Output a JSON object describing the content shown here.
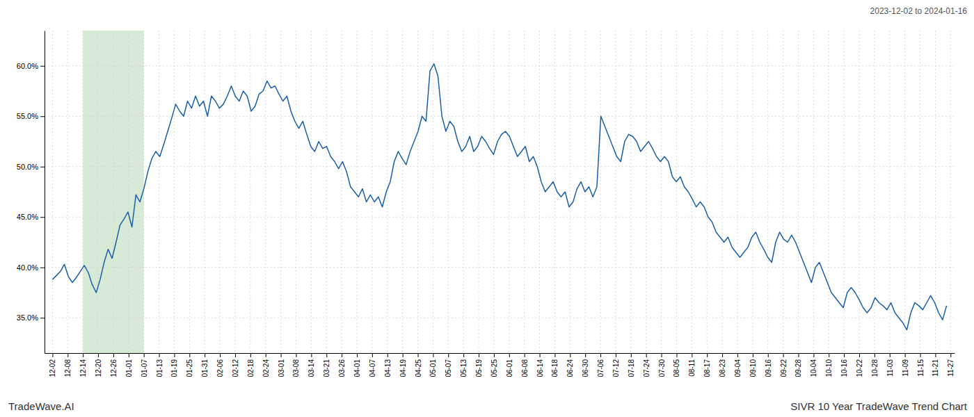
{
  "chart_data": {
    "type": "line",
    "title": "SIVR 10 Year TradeWave Trend Chart",
    "subtitle": "2023-12-02 to 2024-01-16",
    "annotations": [
      "TradeWave.AI"
    ],
    "color": "#1a5fa8",
    "grid": true,
    "highlight": {
      "x": [
        7.6610169492,
        22.9830508475
      ],
      "color": "#d6ead6"
    },
    "xlim": [
      -2,
      227
    ],
    "xticks": [
      {
        "value": 0,
        "label": "12-02"
      },
      {
        "value": 3.8305084746,
        "label": "12-08"
      },
      {
        "value": 7.6610169492,
        "label": "12-14"
      },
      {
        "value": 11.4915254237,
        "label": "12-20"
      },
      {
        "value": 15.3220338983,
        "label": "12-26"
      },
      {
        "value": 19.1525423729,
        "label": "01-01"
      },
      {
        "value": 22.9830508475,
        "label": "01-07"
      },
      {
        "value": 26.813559322,
        "label": "01-13"
      },
      {
        "value": 30.6440677966,
        "label": "01-19"
      },
      {
        "value": 34.4745762712,
        "label": "01-25"
      },
      {
        "value": 38.3050847458,
        "label": "01-31"
      },
      {
        "value": 42.1355932203,
        "label": "02-06"
      },
      {
        "value": 45.9661016949,
        "label": "02-12"
      },
      {
        "value": 49.7966101695,
        "label": "02-18"
      },
      {
        "value": 53.6271186441,
        "label": "02-24"
      },
      {
        "value": 57.4576271186,
        "label": "03-01"
      },
      {
        "value": 61.2881355932,
        "label": "03-08"
      },
      {
        "value": 65.1186440678,
        "label": "03-14"
      },
      {
        "value": 68.9491525424,
        "label": "03-21"
      },
      {
        "value": 72.7796610169,
        "label": "03-26"
      },
      {
        "value": 76.6101694915,
        "label": "04-01"
      },
      {
        "value": 80.4406779661,
        "label": "04-07"
      },
      {
        "value": 84.2711864407,
        "label": "04-13"
      },
      {
        "value": 88.1016949153,
        "label": "04-19"
      },
      {
        "value": 91.9322033898,
        "label": "04-25"
      },
      {
        "value": 95.7627118644,
        "label": "05-01"
      },
      {
        "value": 99.593220339,
        "label": "05-07"
      },
      {
        "value": 103.4237288136,
        "label": "05-13"
      },
      {
        "value": 107.2542372881,
        "label": "05-19"
      },
      {
        "value": 111.0847457627,
        "label": "05-25"
      },
      {
        "value": 114.9152542373,
        "label": "06-01"
      },
      {
        "value": 118.7457627119,
        "label": "06-08"
      },
      {
        "value": 122.5762711864,
        "label": "06-14"
      },
      {
        "value": 126.406779661,
        "label": "06-18"
      },
      {
        "value": 130.2372881356,
        "label": "06-24"
      },
      {
        "value": 134.0677966102,
        "label": "06-30"
      },
      {
        "value": 137.8983050847,
        "label": "07-06"
      },
      {
        "value": 141.7288135593,
        "label": "07-12"
      },
      {
        "value": 145.5593220339,
        "label": "07-18"
      },
      {
        "value": 149.3898305085,
        "label": "07-24"
      },
      {
        "value": 153.2203389831,
        "label": "07-30"
      },
      {
        "value": 157.0508474576,
        "label": "08-05"
      },
      {
        "value": 160.8813559322,
        "label": "08-11"
      },
      {
        "value": 164.7118644068,
        "label": "08-17"
      },
      {
        "value": 168.5423728814,
        "label": "08-23"
      },
      {
        "value": 172.3728813559,
        "label": "09-04"
      },
      {
        "value": 176.2033898305,
        "label": "09-10"
      },
      {
        "value": 180.0338983051,
        "label": "09-16"
      },
      {
        "value": 183.8644067797,
        "label": "09-22"
      },
      {
        "value": 187.6949152542,
        "label": "09-28"
      },
      {
        "value": 191.5254237288,
        "label": "10-04"
      },
      {
        "value": 195.3559322034,
        "label": "10-10"
      },
      {
        "value": 199.186440678,
        "label": "10-16"
      },
      {
        "value": 203.0169491525,
        "label": "10-22"
      },
      {
        "value": 206.8474576271,
        "label": "10-28"
      },
      {
        "value": 210.6779661017,
        "label": "11-03"
      },
      {
        "value": 214.5084745763,
        "label": "11-09"
      },
      {
        "value": 218.3389830508,
        "label": "11-15"
      },
      {
        "value": 222.1694915254,
        "label": "11-21"
      },
      {
        "value": 226,
        "label": "11-27"
      }
    ],
    "ylim": [
      31.5,
      63.5
    ],
    "yticks": [
      {
        "value": 35.0,
        "label": "35.0%"
      },
      {
        "value": 40.0,
        "label": "40.0%"
      },
      {
        "value": 45.0,
        "label": "45.0%"
      },
      {
        "value": 50.0,
        "label": "50.0%"
      },
      {
        "value": 55.0,
        "label": "55.0%"
      },
      {
        "value": 60.0,
        "label": "60.0%"
      }
    ],
    "x": [
      0,
      1,
      2,
      3,
      4,
      5,
      6,
      7,
      8,
      9,
      10,
      11,
      12,
      13,
      14,
      15,
      16,
      17,
      18,
      19,
      20,
      21,
      22,
      23,
      24,
      25,
      26,
      27,
      28,
      29,
      30,
      31,
      32,
      33,
      34,
      35,
      36,
      37,
      38,
      39,
      40,
      41,
      42,
      43,
      44,
      45,
      46,
      47,
      48,
      49,
      50,
      51,
      52,
      53,
      54,
      55,
      56,
      57,
      58,
      59,
      60,
      61,
      62,
      63,
      64,
      65,
      66,
      67,
      68,
      69,
      70,
      71,
      72,
      73,
      74,
      75,
      76,
      77,
      78,
      79,
      80,
      81,
      82,
      83,
      84,
      85,
      86,
      87,
      88,
      89,
      90,
      91,
      92,
      93,
      94,
      95,
      96,
      97,
      98,
      99,
      100,
      101,
      102,
      103,
      104,
      105,
      106,
      107,
      108,
      109,
      110,
      111,
      112,
      113,
      114,
      115,
      116,
      117,
      118,
      119,
      120,
      121,
      122,
      123,
      124,
      125,
      126,
      127,
      128,
      129,
      130,
      131,
      132,
      133,
      134,
      135,
      136,
      137,
      138,
      139,
      140,
      141,
      142,
      143,
      144,
      145,
      146,
      147,
      148,
      149,
      150,
      151,
      152,
      153,
      154,
      155,
      156,
      157,
      158,
      159,
      160,
      161,
      162,
      163,
      164,
      165,
      166,
      167,
      168,
      169,
      170,
      171,
      172,
      173,
      174,
      175,
      176,
      177,
      178,
      179,
      180,
      181,
      182,
      183,
      184,
      185,
      186,
      187,
      188,
      189,
      190,
      191,
      192,
      193,
      194,
      195,
      196,
      197,
      198,
      199,
      200,
      201,
      202,
      203,
      204,
      205,
      206,
      207,
      208,
      209,
      210,
      211,
      212,
      213,
      214,
      215,
      216,
      217,
      218,
      219,
      220,
      221,
      222,
      223,
      224,
      225
    ],
    "values": [
      38.8,
      39.2,
      39.6,
      40.3,
      39.1,
      38.5,
      39.0,
      39.6,
      40.2,
      39.5,
      38.3,
      37.5,
      38.8,
      40.5,
      41.8,
      40.9,
      42.5,
      44.2,
      44.8,
      45.5,
      44.0,
      47.2,
      46.5,
      47.8,
      49.5,
      50.8,
      51.5,
      51.0,
      52.2,
      53.5,
      54.8,
      56.2,
      55.5,
      55.0,
      56.5,
      55.8,
      57.0,
      56.0,
      56.5,
      55.0,
      57.0,
      56.5,
      55.8,
      56.2,
      57.0,
      58.0,
      57.0,
      56.5,
      57.5,
      57.0,
      55.5,
      56.0,
      57.2,
      57.5,
      58.5,
      57.8,
      58.0,
      57.2,
      56.5,
      57.0,
      55.5,
      54.5,
      53.8,
      54.5,
      53.2,
      52.0,
      51.5,
      52.5,
      51.8,
      52.0,
      51.0,
      50.5,
      49.8,
      50.5,
      49.5,
      48.0,
      47.5,
      47.0,
      47.8,
      46.5,
      47.2,
      46.5,
      47.0,
      46.0,
      47.5,
      48.5,
      50.5,
      51.5,
      50.8,
      50.2,
      51.5,
      52.5,
      53.5,
      55.0,
      54.5,
      59.5,
      60.2,
      59.0,
      55.0,
      53.5,
      54.5,
      54.0,
      52.5,
      51.5,
      52.0,
      53.0,
      51.5,
      52.0,
      53.0,
      52.5,
      51.8,
      51.2,
      52.5,
      53.2,
      53.5,
      53.0,
      52.0,
      51.0,
      51.5,
      52.0,
      50.5,
      51.0,
      50.0,
      48.5,
      47.5,
      48.0,
      48.5,
      47.5,
      47.0,
      47.5,
      46.0,
      46.5,
      47.8,
      48.5,
      47.5,
      48.0,
      47.0,
      48.0,
      55.0,
      54.0,
      53.0,
      52.0,
      51.0,
      50.5,
      52.5,
      53.2,
      53.0,
      52.5,
      51.5,
      52.0,
      52.5,
      51.8,
      51.0,
      50.5,
      51.0,
      50.5,
      49.0,
      48.5,
      49.0,
      48.0,
      47.5,
      46.8,
      46.0,
      46.5,
      46.0,
      45.0,
      44.5,
      43.5,
      43.0,
      42.5,
      43.0,
      42.0,
      41.5,
      41.0,
      41.5,
      42.0,
      43.0,
      43.5,
      42.5,
      41.8,
      41.0,
      40.5,
      42.5,
      43.5,
      42.8,
      42.5,
      43.2,
      42.5,
      41.5,
      40.5,
      39.5,
      38.5,
      40.0,
      40.5,
      39.5,
      38.5,
      37.5,
      37.0,
      36.5,
      36.0,
      37.5,
      38.0,
      37.5,
      36.8,
      36.0,
      35.5,
      36.0,
      37.0,
      36.5,
      36.2,
      35.8,
      36.5,
      35.5,
      35.0,
      34.5,
      33.8,
      35.5,
      36.5,
      36.2,
      35.8,
      36.5,
      37.2,
      36.5,
      35.5,
      34.8,
      36.2
    ]
  }
}
